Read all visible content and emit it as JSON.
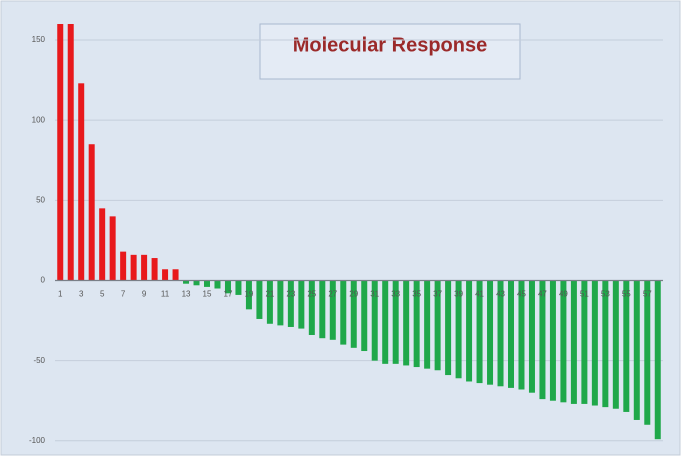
{
  "chart_data": {
    "type": "bar",
    "title": "Molecular Response",
    "categories": [
      "1",
      null,
      "3",
      null,
      "5",
      null,
      "7",
      null,
      "9",
      null,
      "11",
      null,
      "13",
      null,
      "15",
      null,
      "17",
      null,
      "19",
      null,
      "21",
      null,
      "23",
      null,
      "25",
      null,
      "27",
      null,
      "29",
      null,
      "31",
      null,
      "33",
      null,
      "35",
      null,
      "37",
      null,
      "39",
      null,
      "41",
      null,
      "43",
      null,
      "45",
      null,
      "47",
      null,
      "49",
      null,
      "51",
      null,
      "53",
      null,
      "55",
      null,
      "57",
      null
    ],
    "values": [
      160,
      160,
      123,
      85,
      45,
      40,
      18,
      16,
      16,
      14,
      7,
      7,
      -2,
      -3,
      -4,
      -5,
      -8,
      -9,
      -18,
      -24,
      -27,
      -28,
      -29,
      -30,
      -34,
      -36,
      -37,
      -40,
      -42,
      -44,
      -50,
      -52,
      -52,
      -53,
      -54,
      -55,
      -56,
      -59,
      -61,
      -63,
      -64,
      -65,
      -66,
      -67,
      -68,
      -70,
      -74,
      -75,
      -76,
      -77,
      -77,
      -78,
      -79,
      -80,
      -82,
      -87,
      -90,
      -99
    ],
    "positive_color": "#e8191c",
    "negative_color": "#1fa84a",
    "ylim": [
      -102,
      160
    ],
    "yticks": [
      -100,
      -50,
      0,
      50,
      100,
      150
    ],
    "grid": true
  }
}
